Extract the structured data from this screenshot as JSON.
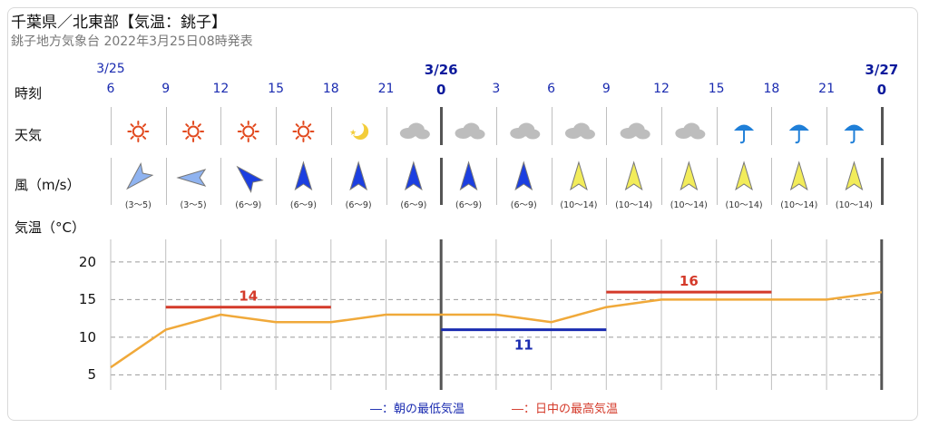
{
  "header": {
    "title": "千葉県／北東部【気温：銚子】",
    "subtitle": "銚子地方気象台 2022年3月25日08時発表"
  },
  "row_labels": {
    "time": "時刻",
    "weather": "天気",
    "wind": "風（m/s）",
    "temperature": "気温（°C）"
  },
  "dates": [
    {
      "label": "3/25",
      "bold": false
    },
    {
      "label": "3/26",
      "bold": true
    },
    {
      "label": "3/27",
      "bold": true
    }
  ],
  "hours": [
    "6",
    "9",
    "12",
    "15",
    "18",
    "21",
    "0",
    "3",
    "6",
    "9",
    "12",
    "15",
    "18",
    "21",
    "0"
  ],
  "weather": [
    "sun",
    "sun",
    "sun",
    "sun",
    "moon",
    "cloud",
    "cloud",
    "cloud",
    "cloud",
    "cloud",
    "cloud",
    "rain",
    "rain",
    "rain"
  ],
  "wind": [
    {
      "dir": "NE",
      "speed": "(3〜5)",
      "color": "#8fb3f0"
    },
    {
      "dir": "E",
      "speed": "(3〜5)",
      "color": "#8fb3f0"
    },
    {
      "dir": "SE",
      "speed": "(6〜9)",
      "color": "#1c3fe0"
    },
    {
      "dir": "S",
      "speed": "(6〜9)",
      "color": "#1c3fe0"
    },
    {
      "dir": "S",
      "speed": "(6〜9)",
      "color": "#1c3fe0"
    },
    {
      "dir": "S",
      "speed": "(6〜9)",
      "color": "#1c3fe0"
    },
    {
      "dir": "S",
      "speed": "(6〜9)",
      "color": "#1c3fe0"
    },
    {
      "dir": "S",
      "speed": "(6〜9)",
      "color": "#1c3fe0"
    },
    {
      "dir": "S",
      "speed": "(10〜14)",
      "color": "#f2ec5a"
    },
    {
      "dir": "S",
      "speed": "(10〜14)",
      "color": "#f2ec5a"
    },
    {
      "dir": "S",
      "speed": "(10〜14)",
      "color": "#f2ec5a"
    },
    {
      "dir": "S",
      "speed": "(10〜14)",
      "color": "#f2ec5a"
    },
    {
      "dir": "S",
      "speed": "(10〜14)",
      "color": "#f2ec5a"
    },
    {
      "dir": "S",
      "speed": "(10〜14)",
      "color": "#f2ec5a"
    }
  ],
  "legend": {
    "min": "―：朝の最低気温",
    "max": "―：日中の最高気温",
    "min_color": "#1a2bb0",
    "max_color": "#d43a2a"
  },
  "chart_data": {
    "type": "line",
    "x": [
      "3/25 6",
      "9",
      "12",
      "15",
      "18",
      "21",
      "3/26 0",
      "3",
      "6",
      "9",
      "12",
      "15",
      "18",
      "21",
      "3/27 0"
    ],
    "series": [
      {
        "values": [
          6,
          11,
          13,
          12,
          12,
          13,
          13,
          13,
          12,
          14,
          15,
          15,
          15,
          15,
          16
        ],
        "color": "#f0a93a"
      }
    ],
    "max_temp": [
      {
        "label": "14",
        "value": 14,
        "from": 1,
        "to": 4
      },
      {
        "label": "16",
        "value": 16,
        "from": 9,
        "to": 12
      }
    ],
    "min_temp": [
      {
        "label": "11",
        "value": 11,
        "from": 6,
        "to": 9
      }
    ],
    "yticks": [
      "20",
      "15",
      "10",
      "5"
    ],
    "ylim": [
      3,
      23
    ],
    "grid": true
  }
}
